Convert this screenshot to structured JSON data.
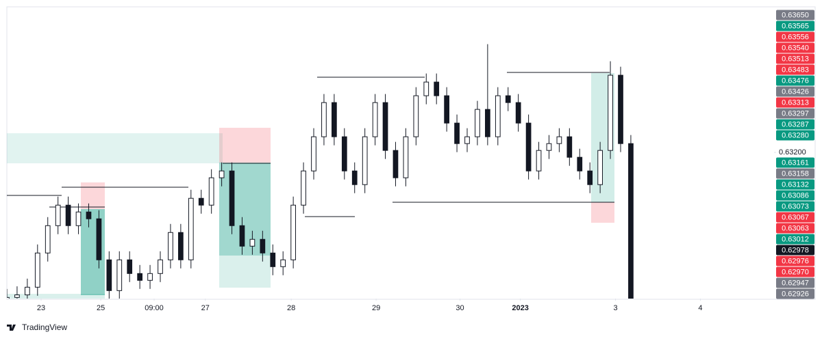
{
  "chart_data": {
    "type": "candlestick",
    "brand": "TradingView",
    "open": [
      0.6268,
      0.62691,
      0.627,
      0.62727,
      0.62847,
      0.62943,
      0.63015,
      0.62943,
      0.62991,
      0.62967,
      0.62823,
      0.62715,
      0.62823,
      0.62775,
      0.62751,
      0.62775,
      0.62823,
      0.62919,
      0.62823,
      0.63039,
      0.63015,
      0.63111,
      0.63135,
      0.62943,
      0.62871,
      0.62895,
      0.62847,
      0.62799,
      0.62823,
      0.63015,
      0.63135,
      0.63255,
      0.63375,
      0.63255,
      0.63135,
      0.63087,
      0.63255,
      0.63375,
      0.63207,
      0.63111,
      0.63255,
      0.63399,
      0.63447,
      0.63399,
      0.63303,
      0.63231,
      0.63255,
      0.63351,
      0.63255,
      0.63399,
      0.63375,
      0.63303,
      0.63135,
      0.63207,
      0.63231,
      0.63255,
      0.63183,
      0.63135,
      0.63087,
      0.63207,
      0.63471,
      0.63231
    ],
    "high": [
      0.62721,
      0.6273,
      0.62757,
      0.62877,
      0.62973,
      0.63045,
      0.63045,
      0.63021,
      0.63021,
      0.62997,
      0.62853,
      0.62853,
      0.62853,
      0.62805,
      0.62805,
      0.62853,
      0.62949,
      0.62949,
      0.63069,
      0.63069,
      0.63141,
      0.63165,
      0.63165,
      0.62973,
      0.62925,
      0.62925,
      0.62877,
      0.62853,
      0.63045,
      0.63165,
      0.63285,
      0.63405,
      0.63405,
      0.63285,
      0.63165,
      0.63285,
      0.63405,
      0.63405,
      0.63237,
      0.63285,
      0.63429,
      0.63477,
      0.63477,
      0.63429,
      0.63333,
      0.63285,
      0.63381,
      0.6358,
      0.63429,
      0.63429,
      0.63405,
      0.63333,
      0.63237,
      0.63261,
      0.63285,
      0.63285,
      0.63213,
      0.63165,
      0.63237,
      0.6352,
      0.63501,
      0.63261
    ],
    "low": [
      0.6265,
      0.62661,
      0.6267,
      0.62697,
      0.62817,
      0.62913,
      0.62913,
      0.62913,
      0.62937,
      0.62793,
      0.62685,
      0.62685,
      0.62745,
      0.62721,
      0.62721,
      0.62745,
      0.62793,
      0.62793,
      0.62793,
      0.62985,
      0.62985,
      0.63081,
      0.62913,
      0.62841,
      0.62841,
      0.62817,
      0.62769,
      0.62769,
      0.62793,
      0.62985,
      0.63105,
      0.63225,
      0.63225,
      0.63105,
      0.63057,
      0.63057,
      0.63225,
      0.63177,
      0.63081,
      0.63081,
      0.63225,
      0.63369,
      0.63369,
      0.63273,
      0.63201,
      0.63201,
      0.63225,
      0.63225,
      0.63225,
      0.63345,
      0.63273,
      0.63105,
      0.63105,
      0.63177,
      0.63201,
      0.63153,
      0.63105,
      0.63057,
      0.63057,
      0.63177,
      0.63201,
      0.62656
    ],
    "close": [
      0.62691,
      0.627,
      0.62727,
      0.62847,
      0.62943,
      0.63015,
      0.62943,
      0.62991,
      0.62967,
      0.62823,
      0.62715,
      0.62823,
      0.62775,
      0.62751,
      0.62775,
      0.62823,
      0.62919,
      0.62823,
      0.63039,
      0.63015,
      0.63111,
      0.63135,
      0.62943,
      0.62871,
      0.62895,
      0.62847,
      0.62799,
      0.62823,
      0.63015,
      0.63135,
      0.63255,
      0.63375,
      0.63255,
      0.63135,
      0.63087,
      0.63255,
      0.63375,
      0.63207,
      0.63111,
      0.63255,
      0.63399,
      0.63447,
      0.63399,
      0.63303,
      0.63231,
      0.63255,
      0.63351,
      0.63255,
      0.63399,
      0.63375,
      0.63303,
      0.63135,
      0.63207,
      0.63231,
      0.63255,
      0.63183,
      0.63135,
      0.63087,
      0.63207,
      0.63471,
      0.63231,
      0.62686
    ],
    "xlim": [
      0,
      75
    ],
    "xticks": [
      {
        "value": 3.35,
        "label": "23"
      },
      {
        "value": 9.18,
        "label": "25"
      },
      {
        "value": 14.4,
        "label": "09:00"
      },
      {
        "value": 19.4,
        "label": "27"
      },
      {
        "value": 27.8,
        "label": "28"
      },
      {
        "value": 36.1,
        "label": "29"
      },
      {
        "value": 44.3,
        "label": "30"
      },
      {
        "value": 50.2,
        "label": "2023"
      },
      {
        "value": 59.5,
        "label": "3"
      },
      {
        "value": 67.8,
        "label": "4"
      }
    ],
    "ylim": [
      0.62687,
      0.63711
    ],
    "yticks": [
      {
        "value": 0.632,
        "label": "0.63200"
      }
    ],
    "price_labels": [
      {
        "label": "0.63650",
        "color": "#787b86"
      },
      {
        "label": "0.63565",
        "color": "#089981"
      },
      {
        "label": "0.63556",
        "color": "#f23645"
      },
      {
        "label": "0.63540",
        "color": "#f23645"
      },
      {
        "label": "0.63513",
        "color": "#f23645"
      },
      {
        "label": "0.63483",
        "color": "#f23645"
      },
      {
        "label": "0.63476",
        "color": "#089981"
      },
      {
        "label": "0.63426",
        "color": "#787b86"
      },
      {
        "label": "0.63313",
        "color": "#f23645"
      },
      {
        "label": "0.63297",
        "color": "#787b86"
      },
      {
        "label": "0.63287",
        "color": "#089981"
      },
      {
        "label": "0.63280",
        "color": "#089981"
      },
      {
        "label": "0.63161",
        "color": "#089981"
      },
      {
        "label": "0.63158",
        "color": "#787b86"
      },
      {
        "label": "0.63132",
        "color": "#089981"
      },
      {
        "label": "0.63086",
        "color": "#089981"
      },
      {
        "label": "0.63073",
        "color": "#089981"
      },
      {
        "label": "0.63067",
        "color": "#f23645"
      },
      {
        "label": "0.63063",
        "color": "#f23645"
      },
      {
        "label": "0.63012",
        "color": "#089981"
      },
      {
        "label": "0.62978",
        "color": "#131722"
      },
      {
        "label": "0.62976",
        "color": "#f23645"
      },
      {
        "label": "0.62970",
        "color": "#f23645"
      },
      {
        "label": "0.62947",
        "color": "#787b86"
      },
      {
        "label": "0.62926",
        "color": "#787b86"
      }
    ],
    "up_color": "#ffffff",
    "down_color": "#131722",
    "wick_color": "#131722"
  }
}
